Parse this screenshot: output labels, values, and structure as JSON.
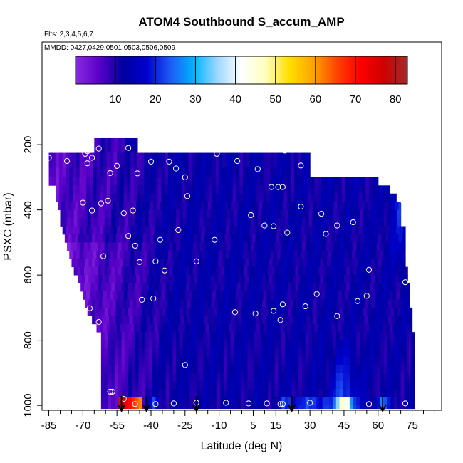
{
  "chart_data": {
    "type": "heatmap",
    "title": "ATOM4 Southbound S_accum_AMP",
    "subtitle_flights": "Flts: 2,3,4,5,6,7",
    "subtitle_dates": "MMDD: 0427,0429,0501,0503,0506,0509",
    "xlabel": "Latitude (deg N)",
    "ylabel": "PSXC (mbar)",
    "xlim": [
      -88,
      88
    ],
    "ylim": [
      1015,
      -115
    ],
    "x_tick_values": [
      -85,
      -70,
      -55,
      -40,
      -25,
      -10,
      5,
      15,
      30,
      45,
      60,
      75
    ],
    "x_tick_labels": [
      "-85",
      "-70",
      "-55",
      "-40",
      "-25",
      "-10",
      "5",
      "15",
      "30",
      "45",
      "60",
      "75"
    ],
    "y_tick_values": [
      200,
      400,
      600,
      800,
      1000
    ],
    "y_tick_labels": [
      "200",
      "400",
      "600",
      "800",
      "1000"
    ],
    "colorbar": {
      "range": [
        0,
        83
      ],
      "tick_values": [
        10,
        20,
        30,
        40,
        50,
        60,
        70,
        80
      ],
      "tick_labels": [
        "10",
        "20",
        "30",
        "40",
        "50",
        "60",
        "70",
        "80"
      ],
      "colors": [
        "#8a2be2",
        "#5a00c8",
        "#00009f",
        "#0000cd",
        "#1e5af5",
        "#00b4ff",
        "#9fd8ff",
        "#ffffff",
        "#ffffc0",
        "#ffe000",
        "#ffa500",
        "#ff4500",
        "#ff0000",
        "#cd0000",
        "#a52a2a"
      ]
    },
    "pressure_levels": [
      200,
      250,
      300,
      350,
      400,
      450,
      500,
      550,
      600,
      650,
      700,
      750,
      800,
      850,
      900,
      950,
      1000
    ],
    "row_lat_extent": [
      [
        -65,
        -46
      ],
      [
        -85,
        30
      ],
      [
        -85,
        30
      ],
      [
        -85,
        60
      ],
      [
        -82,
        65
      ],
      [
        -82,
        68
      ],
      [
        -81,
        70
      ],
      [
        -80,
        70
      ],
      [
        -80,
        70
      ],
      [
        -79,
        72
      ],
      [
        -78,
        72
      ],
      [
        -77,
        72
      ],
      [
        -76,
        72
      ],
      [
        -75,
        72
      ],
      [
        -74,
        73
      ],
      [
        -72,
        73
      ],
      [
        -71,
        74
      ],
      [
        -70,
        74
      ],
      [
        -69,
        74
      ],
      [
        -68,
        75
      ],
      [
        -66,
        75
      ],
      [
        -64,
        75
      ],
      [
        -62,
        76
      ]
    ],
    "row_pressure_edges": [
      180,
      225,
      270,
      300,
      325,
      350,
      375,
      400,
      425,
      450,
      475,
      500,
      525,
      550,
      575,
      600,
      625,
      650,
      675,
      700,
      725,
      750,
      775,
      800,
      825,
      850,
      875,
      900,
      925,
      950,
      975,
      1000,
      1010
    ],
    "profile_markers_lat": [
      -53,
      -42,
      -20,
      22,
      62
    ],
    "sample_points": [
      {
        "lat": -85,
        "p": 240
      },
      {
        "lat": -77,
        "p": 250
      },
      {
        "lat": -69,
        "p": 228
      },
      {
        "lat": -68,
        "p": 220
      },
      {
        "lat": -68,
        "p": 257
      },
      {
        "lat": -66,
        "p": 240
      },
      {
        "lat": -63,
        "p": 212
      },
      {
        "lat": -58,
        "p": 287
      },
      {
        "lat": -55,
        "p": 265
      },
      {
        "lat": -50,
        "p": 210
      },
      {
        "lat": -40,
        "p": 252
      },
      {
        "lat": -32,
        "p": 252
      },
      {
        "lat": -46,
        "p": 288
      },
      {
        "lat": -29,
        "p": 273
      },
      {
        "lat": -11,
        "p": 228
      },
      {
        "lat": -2,
        "p": 250
      },
      {
        "lat": 7,
        "p": 275
      },
      {
        "lat": 19,
        "p": 218
      },
      {
        "lat": 26,
        "p": 264
      },
      {
        "lat": 34,
        "p": 260
      },
      {
        "lat": 48,
        "p": 286
      },
      {
        "lat": -25,
        "p": 300
      },
      {
        "lat": -62,
        "p": 380
      },
      {
        "lat": -70,
        "p": 378
      },
      {
        "lat": -66,
        "p": 402
      },
      {
        "lat": -59,
        "p": 372
      },
      {
        "lat": -52,
        "p": 410
      },
      {
        "lat": -48,
        "p": 402
      },
      {
        "lat": -24,
        "p": 358
      },
      {
        "lat": 13,
        "p": 330
      },
      {
        "lat": 16,
        "p": 330
      },
      {
        "lat": 18,
        "p": 330
      },
      {
        "lat": 26,
        "p": 390
      },
      {
        "lat": 35,
        "p": 412
      },
      {
        "lat": 4,
        "p": 416
      },
      {
        "lat": 10,
        "p": 448
      },
      {
        "lat": 14,
        "p": 450
      },
      {
        "lat": 20,
        "p": 470
      },
      {
        "lat": 37,
        "p": 474
      },
      {
        "lat": 42,
        "p": 448
      },
      {
        "lat": 49,
        "p": 438
      },
      {
        "lat": 71,
        "p": 372
      },
      {
        "lat": -50,
        "p": 480
      },
      {
        "lat": -47,
        "p": 510
      },
      {
        "lat": -36,
        "p": 492
      },
      {
        "lat": -28,
        "p": 462
      },
      {
        "lat": -12,
        "p": 492
      },
      {
        "lat": -61,
        "p": 542
      },
      {
        "lat": -84,
        "p": 540
      },
      {
        "lat": -45,
        "p": 560
      },
      {
        "lat": -38,
        "p": 558
      },
      {
        "lat": -34,
        "p": 586
      },
      {
        "lat": -20,
        "p": 558
      },
      {
        "lat": 56,
        "p": 584
      },
      {
        "lat": -44,
        "p": 676
      },
      {
        "lat": -39,
        "p": 672
      },
      {
        "lat": 18,
        "p": 690
      },
      {
        "lat": 28,
        "p": 696
      },
      {
        "lat": 33,
        "p": 658
      },
      {
        "lat": 55,
        "p": 664
      },
      {
        "lat": 51,
        "p": 680
      },
      {
        "lat": 72,
        "p": 622
      },
      {
        "lat": -3,
        "p": 714
      },
      {
        "lat": 6,
        "p": 718
      },
      {
        "lat": 14,
        "p": 710
      },
      {
        "lat": 42,
        "p": 726
      },
      {
        "lat": 17,
        "p": 738
      },
      {
        "lat": -67,
        "p": 702
      },
      {
        "lat": -63,
        "p": 744
      },
      {
        "lat": -66,
        "p": 796
      },
      {
        "lat": -25,
        "p": 876
      },
      {
        "lat": -67,
        "p": 950
      },
      {
        "lat": -58,
        "p": 958
      },
      {
        "lat": -57,
        "p": 958
      },
      {
        "lat": -52,
        "p": 980
      },
      {
        "lat": -47,
        "p": 996
      },
      {
        "lat": -38,
        "p": 996
      },
      {
        "lat": -30,
        "p": 994
      },
      {
        "lat": -20,
        "p": 992
      },
      {
        "lat": -7,
        "p": 992
      },
      {
        "lat": 3,
        "p": 994
      },
      {
        "lat": 11,
        "p": 994
      },
      {
        "lat": 17,
        "p": 996
      },
      {
        "lat": 18,
        "p": 996
      },
      {
        "lat": 30,
        "p": 992
      },
      {
        "lat": 45,
        "p": 994
      },
      {
        "lat": 56,
        "p": 996
      },
      {
        "lat": 72,
        "p": 994
      }
    ]
  }
}
